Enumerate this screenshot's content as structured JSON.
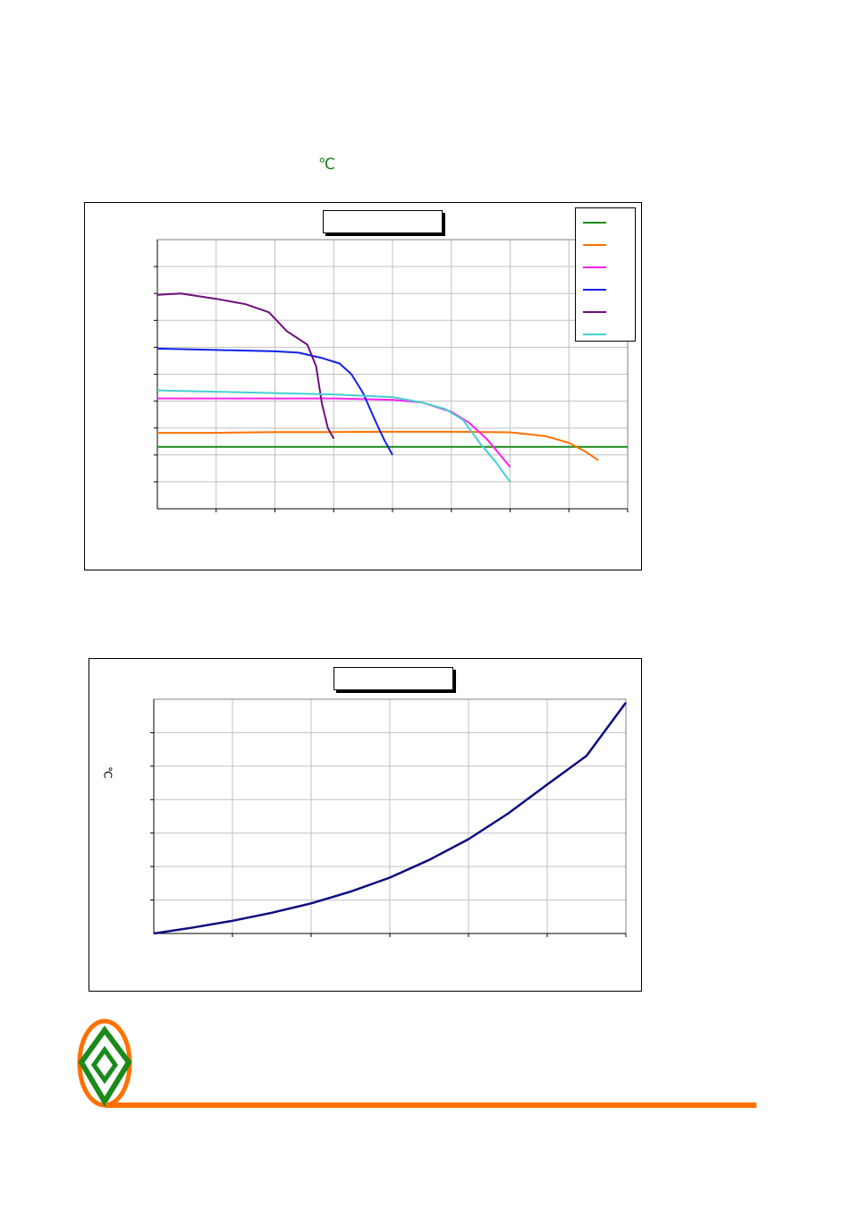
{
  "unit_symbol": "℃",
  "colors": {
    "green": "#1a8a1a",
    "orange": "#ff7000",
    "magenta": "#ff22ee",
    "blue": "#1022ee",
    "purple": "#6e0e7a",
    "cyan": "#44d0d0",
    "navy": "#0c0c80"
  },
  "chart_data": [
    {
      "type": "line",
      "title": "",
      "xlabel": "",
      "ylabel": "",
      "xlim": [
        0,
        8
      ],
      "ylim": [
        0,
        10
      ],
      "grid": true,
      "legend": "top-right",
      "series": [
        {
          "color": "#1a8a1a",
          "x": [
            0,
            8
          ],
          "y": [
            2.3,
            2.3
          ]
        },
        {
          "color": "#ff7000",
          "x": [
            0,
            1,
            2,
            3,
            4,
            5,
            6,
            6.6,
            7.0,
            7.3,
            7.5
          ],
          "y": [
            2.82,
            2.82,
            2.85,
            2.85,
            2.86,
            2.86,
            2.84,
            2.7,
            2.45,
            2.1,
            1.8
          ]
        },
        {
          "color": "#ff22ee",
          "x": [
            0,
            1,
            2,
            3,
            4,
            4.5,
            5.0,
            5.3,
            5.6,
            5.85,
            6.0
          ],
          "y": [
            4.1,
            4.1,
            4.1,
            4.1,
            4.05,
            3.95,
            3.6,
            3.2,
            2.6,
            1.95,
            1.55
          ]
        },
        {
          "color": "#1022ee",
          "x": [
            0,
            1,
            2,
            2.4,
            2.8,
            3.1,
            3.3,
            3.5,
            3.7,
            3.85,
            4.0
          ],
          "y": [
            5.95,
            5.9,
            5.85,
            5.8,
            5.6,
            5.4,
            5.0,
            4.3,
            3.3,
            2.6,
            2.0
          ]
        },
        {
          "color": "#6e0e7a",
          "x": [
            0,
            0.4,
            1,
            1.5,
            1.9,
            2.2,
            2.55,
            2.7,
            2.8,
            2.9,
            3.0
          ],
          "y": [
            7.95,
            8.0,
            7.8,
            7.6,
            7.3,
            6.6,
            6.1,
            5.3,
            3.9,
            3.0,
            2.6
          ]
        },
        {
          "color": "#44d0d0",
          "x": [
            0,
            1,
            2,
            3,
            4,
            4.5,
            4.9,
            5.2,
            5.5,
            5.75,
            6.0
          ],
          "y": [
            4.4,
            4.35,
            4.3,
            4.25,
            4.15,
            3.95,
            3.7,
            3.3,
            2.4,
            1.75,
            1.0
          ]
        }
      ]
    },
    {
      "type": "line",
      "title": "",
      "xlabel": "",
      "ylabel": "℃",
      "xlim": [
        0,
        6
      ],
      "ylim": [
        0,
        7
      ],
      "grid": true,
      "series": [
        {
          "color": "#0c0c80",
          "x": [
            0,
            0.5,
            1,
            1.5,
            2,
            2.5,
            3,
            3.5,
            4,
            4.5,
            5,
            5.5,
            6
          ],
          "y": [
            0,
            0.18,
            0.38,
            0.62,
            0.9,
            1.25,
            1.67,
            2.2,
            2.82,
            3.58,
            4.45,
            5.31,
            6.9
          ]
        }
      ]
    }
  ]
}
